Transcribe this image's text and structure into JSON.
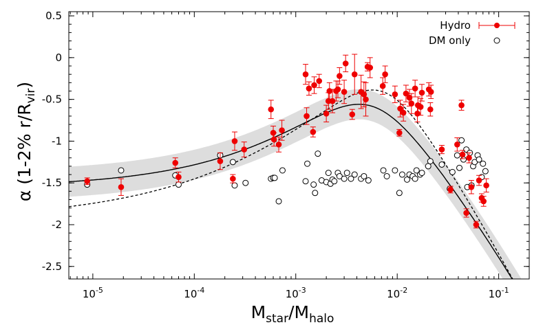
{
  "chart_data": {
    "type": "scatter",
    "xscale": "log",
    "xlim": [
      5.8e-06,
      0.2
    ],
    "ylim": [
      -2.65,
      0.55
    ],
    "xlabel": {
      "base": "M",
      "sub1": "star",
      "mid": "/M",
      "sub2": "halo"
    },
    "ylabel": {
      "main": "α (1-2% r/R",
      "sub": "vir",
      "close": ")"
    },
    "x_ticks": [
      {
        "value": 1e-05,
        "base": "10",
        "exp": "-5"
      },
      {
        "value": 0.0001,
        "base": "10",
        "exp": "-4"
      },
      {
        "value": 0.001,
        "base": "10",
        "exp": "-3"
      },
      {
        "value": 0.01,
        "base": "10",
        "exp": "-2"
      },
      {
        "value": 0.1,
        "base": "10",
        "exp": "-1"
      }
    ],
    "y_ticks": [
      {
        "value": 0.5,
        "label": "0.5"
      },
      {
        "value": 0,
        "label": "0"
      },
      {
        "value": -0.5,
        "label": "-0.5"
      },
      {
        "value": -1,
        "label": "-1"
      },
      {
        "value": -1.5,
        "label": "-1.5"
      },
      {
        "value": -2,
        "label": "-2"
      },
      {
        "value": -2.5,
        "label": "-2.5"
      }
    ],
    "legend": {
      "position": "top-right",
      "hydro_label": "Hydro",
      "dm_label": "DM only"
    },
    "colors": {
      "hydro": "#ee0000",
      "fit": "#000000",
      "band": "#dddddd",
      "dm": "#000000"
    },
    "series": [
      {
        "name": "Hydro",
        "marker": "filled-circle",
        "x": [
          8.8e-06,
          1.9e-05,
          6.5e-05,
          7e-05,
          0.00018,
          0.00024,
          0.00025,
          0.00031,
          0.00057,
          0.0006,
          0.00061,
          0.00068,
          0.00073,
          0.00125,
          0.00128,
          0.00135,
          0.00148,
          0.00152,
          0.0017,
          0.002,
          0.0021,
          0.00215,
          0.0023,
          0.0025,
          0.0026,
          0.0027,
          0.003,
          0.0031,
          0.0036,
          0.0038,
          0.0044,
          0.0047,
          0.0049,
          0.0051,
          0.0054,
          0.0072,
          0.0076,
          0.0095,
          0.0105,
          0.0107,
          0.0115,
          0.0122,
          0.0132,
          0.0138,
          0.015,
          0.0158,
          0.016,
          0.017,
          0.0175,
          0.0205,
          0.0212,
          0.0215,
          0.0275,
          0.0335,
          0.039,
          0.043,
          0.044,
          0.048,
          0.051,
          0.0538,
          0.06,
          0.064,
          0.068,
          0.071,
          0.0755
        ],
        "y": [
          -1.48,
          -1.55,
          -1.26,
          -1.43,
          -1.24,
          -1.45,
          -1.0,
          -1.1,
          -0.62,
          -0.9,
          -0.98,
          -1.04,
          -0.87,
          -0.2,
          -0.7,
          -0.37,
          -0.89,
          -0.33,
          -0.28,
          -0.67,
          -0.52,
          -0.4,
          -0.52,
          -0.4,
          -0.38,
          -0.22,
          -0.41,
          -0.07,
          -0.68,
          -0.2,
          -0.41,
          -0.44,
          -0.5,
          -0.11,
          -0.12,
          -0.34,
          -0.2,
          -0.44,
          -0.9,
          -0.61,
          -0.66,
          -0.43,
          -0.48,
          -0.55,
          -0.37,
          -0.67,
          -0.57,
          -0.59,
          -0.42,
          -0.38,
          -0.62,
          -0.41,
          -1.1,
          -1.58,
          -1.04,
          -0.57,
          -1.16,
          -1.86,
          -1.2,
          -1.55,
          -2.0,
          -1.47,
          -1.68,
          -1.72,
          -1.53
        ],
        "yerr": [
          0.04,
          0.1,
          0.06,
          0.06,
          0.1,
          0.05,
          0.11,
          0.09,
          0.11,
          0.08,
          0.08,
          0.09,
          0.12,
          0.12,
          0.1,
          0.08,
          0.06,
          0.1,
          0.08,
          0.1,
          0.1,
          0.1,
          0.14,
          0.12,
          0.1,
          0.1,
          0.14,
          0.1,
          0.06,
          0.24,
          0.2,
          0.15,
          0.2,
          0.05,
          0.12,
          0.1,
          0.1,
          0.1,
          0.04,
          0.1,
          0.1,
          0.1,
          0.1,
          0.12,
          0.1,
          0.1,
          0.1,
          0.1,
          0.1,
          0.08,
          0.08,
          0.08,
          0.05,
          0.04,
          0.08,
          0.06,
          0.05,
          0.05,
          0.06,
          0.08,
          0.04,
          0.06,
          0.05,
          0.06,
          0.08
        ]
      },
      {
        "name": "DM only",
        "marker": "open-circle",
        "x": [
          8.8e-06,
          1.9e-05,
          6.5e-05,
          7e-05,
          0.00018,
          0.00024,
          0.00025,
          0.00032,
          0.00057,
          0.0006,
          0.00062,
          0.00068,
          0.00074,
          0.00125,
          0.0013,
          0.0015,
          0.00155,
          0.00165,
          0.0018,
          0.002,
          0.0021,
          0.0022,
          0.0023,
          0.0024,
          0.0026,
          0.0027,
          0.003,
          0.0032,
          0.0035,
          0.0038,
          0.0044,
          0.0047,
          0.0052,
          0.0073,
          0.0079,
          0.0095,
          0.0105,
          0.0112,
          0.0125,
          0.0132,
          0.0142,
          0.015,
          0.0155,
          0.0168,
          0.0175,
          0.0202,
          0.0212,
          0.0275,
          0.033,
          0.035,
          0.039,
          0.041,
          0.043,
          0.045,
          0.048,
          0.049,
          0.052,
          0.054,
          0.056,
          0.058,
          0.062,
          0.064,
          0.068,
          0.07,
          0.074
        ],
        "y": [
          -1.52,
          -1.35,
          -1.41,
          -1.52,
          -1.17,
          -1.25,
          -1.53,
          -1.5,
          -1.45,
          -1.44,
          -1.44,
          -1.72,
          -1.35,
          -1.48,
          -1.27,
          -1.52,
          -1.62,
          -1.15,
          -1.47,
          -1.49,
          -1.38,
          -1.51,
          -1.46,
          -1.48,
          -1.38,
          -1.42,
          -1.45,
          -1.38,
          -1.45,
          -1.4,
          -1.45,
          -1.42,
          -1.47,
          -1.35,
          -1.42,
          -1.35,
          -1.62,
          -1.4,
          -1.46,
          -1.4,
          -1.42,
          -1.45,
          -1.35,
          -1.4,
          -1.38,
          -1.3,
          -1.24,
          -1.28,
          -1.57,
          -1.37,
          -1.17,
          -1.32,
          -0.99,
          -1.22,
          -1.1,
          -1.55,
          -1.14,
          -1.53,
          -1.3,
          -1.25,
          -1.17,
          -1.22,
          -1.43,
          -1.27,
          -1.36
        ]
      }
    ],
    "fit_curve": {
      "alpha0": -1.55,
      "beta": -0.74,
      "peak_at": 0.00577,
      "rise_exp": 0.53,
      "fall_exp": 2.26,
      "band_width": 0.18,
      "band_color": "#dddddd"
    },
    "dashed_curve": {
      "alpha0": -1.94,
      "beta": -0.72,
      "peak_at": 0.0075,
      "rise_exp": 0.435,
      "fall_exp": 2.7
    }
  }
}
